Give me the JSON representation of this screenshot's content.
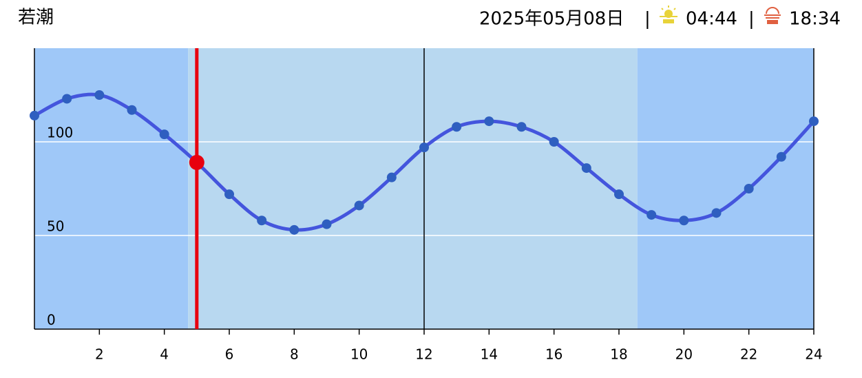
{
  "header": {
    "place": "若潮",
    "date": "2025年05月08日",
    "separator": "|",
    "sunrise": "04:44",
    "sunset": "18:34"
  },
  "chart_data": {
    "type": "line",
    "x": [
      0,
      1,
      2,
      3,
      4,
      5,
      6,
      7,
      8,
      9,
      10,
      11,
      12,
      13,
      14,
      15,
      16,
      17,
      18,
      19,
      20,
      21,
      22,
      23,
      24
    ],
    "series": [
      {
        "color": "#4455dd",
        "values": [
          114,
          123,
          125,
          117,
          104,
          89,
          72,
          58,
          53,
          56,
          66,
          81,
          97,
          108,
          111,
          108,
          100,
          86,
          72,
          61,
          58,
          62,
          75,
          92,
          111
        ]
      }
    ],
    "marker_x": 5,
    "marker_color": "#e8000e",
    "xlim": [
      0,
      24
    ],
    "xticks": [
      2,
      4,
      6,
      8,
      10,
      12,
      14,
      16,
      18,
      20,
      22,
      24
    ],
    "ylim": [
      0,
      150
    ],
    "yticks": [
      0,
      50,
      100
    ],
    "grid": true
  }
}
